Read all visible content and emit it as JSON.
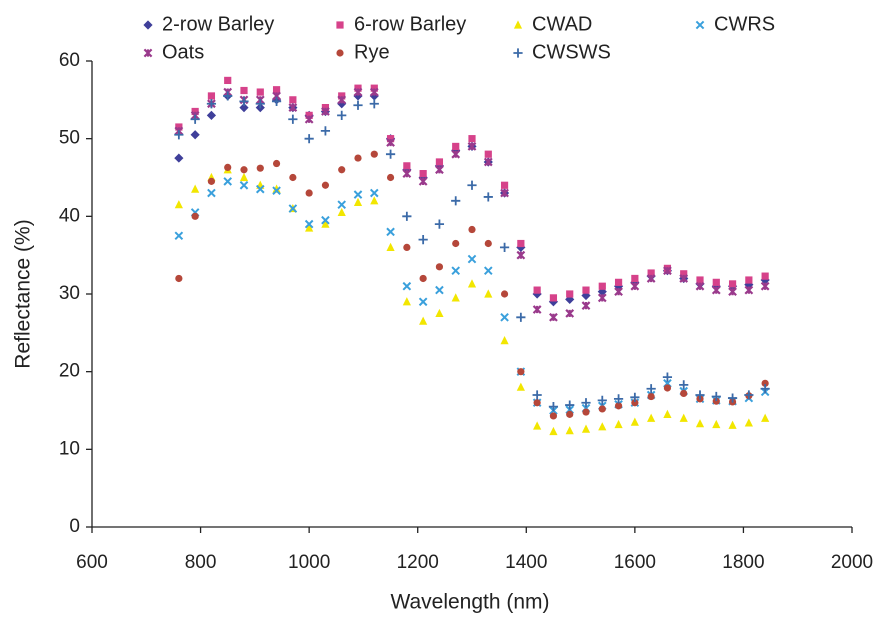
{
  "chart_data": {
    "type": "scatter",
    "x_label": "Wavelength (nm)",
    "y_label": "Reflectance (%)",
    "xlim": [
      600,
      2000
    ],
    "xticks": [
      600,
      800,
      1000,
      1200,
      1400,
      1600,
      1800,
      2000
    ],
    "ylim": [
      0,
      60
    ],
    "yticks": [
      0,
      10,
      20,
      30,
      40,
      50,
      60
    ],
    "grid": false,
    "legend": "top",
    "x": [
      760,
      790,
      820,
      850,
      880,
      910,
      940,
      970,
      1000,
      1030,
      1060,
      1090,
      1120,
      1150,
      1180,
      1210,
      1240,
      1270,
      1300,
      1330,
      1360,
      1390,
      1420,
      1450,
      1480,
      1510,
      1540,
      1570,
      1600,
      1630,
      1660,
      1690,
      1720,
      1750,
      1780,
      1810,
      1840
    ],
    "series": [
      {
        "name": "2-row Barley",
        "color": "#3f3f9a",
        "marker": "diamond",
        "values": [
          47.5,
          50.5,
          53,
          55.5,
          54,
          54,
          55,
          54,
          53,
          53.5,
          54.5,
          55.5,
          55.5,
          50,
          46,
          45,
          46.5,
          48.5,
          49,
          47,
          43,
          36,
          30,
          29,
          29.3,
          29.8,
          30.3,
          31,
          31.5,
          32.3,
          33,
          32,
          31.3,
          31,
          31,
          31.2,
          31.8
        ]
      },
      {
        "name": "6-row Barley",
        "color": "#d6428a",
        "marker": "square",
        "values": [
          51.5,
          53.5,
          55.5,
          57.5,
          56.2,
          56,
          56.3,
          55,
          53,
          54,
          55.5,
          56.5,
          56.5,
          50,
          46.5,
          45.5,
          47,
          49,
          50,
          48,
          44,
          36.5,
          30.5,
          29.5,
          30,
          30.5,
          31,
          31.5,
          32,
          32.7,
          33.3,
          32.6,
          31.8,
          31.5,
          31.3,
          31.8,
          32.3
        ]
      },
      {
        "name": "CWAD",
        "color": "#f2e600",
        "marker": "triangle",
        "values": [
          41.5,
          43.5,
          45,
          46,
          45,
          44,
          43.5,
          41,
          38.5,
          39,
          40.5,
          41.8,
          42,
          36,
          29,
          26.5,
          27.5,
          29.5,
          31.3,
          30,
          24,
          18,
          13,
          12.3,
          12.4,
          12.6,
          12.9,
          13.2,
          13.5,
          14,
          14.5,
          14,
          13.3,
          13.2,
          13.1,
          13.4,
          14
        ]
      },
      {
        "name": "CWRS",
        "color": "#3aa0dc",
        "marker": "x",
        "values": [
          37.5,
          40.5,
          43,
          44.5,
          44,
          43.5,
          43.3,
          41,
          39,
          39.5,
          41.5,
          42.8,
          43,
          38,
          31,
          29,
          30.5,
          33,
          34.5,
          33,
          27,
          20,
          16,
          15,
          15.1,
          15.3,
          15.6,
          15.8,
          16,
          17,
          18.5,
          17.5,
          16.5,
          16.3,
          16.2,
          16.6,
          17.4
        ]
      },
      {
        "name": "Oats",
        "color": "#9a3a8c",
        "marker": "star",
        "values": [
          51,
          53,
          54.5,
          56,
          55,
          55,
          55.5,
          54,
          52.5,
          53.5,
          55,
          56,
          56,
          49.5,
          45.5,
          44.5,
          46,
          48,
          49,
          47,
          43,
          35,
          28,
          27,
          27.5,
          28.5,
          29.5,
          30.3,
          31,
          32,
          33,
          32,
          31,
          30.5,
          30.3,
          30.5,
          31
        ]
      },
      {
        "name": "Rye",
        "color": "#b5473a",
        "marker": "circle",
        "values": [
          32,
          40,
          44.5,
          46.3,
          46,
          46.2,
          46.8,
          45,
          43,
          44,
          46,
          47.5,
          48,
          45,
          36,
          32,
          33.5,
          36.5,
          38.3,
          36.5,
          30,
          20,
          16,
          14.3,
          14.5,
          14.8,
          15.2,
          15.6,
          16,
          16.8,
          17.9,
          17.2,
          16.5,
          16.2,
          16.1,
          16.9,
          18.5
        ]
      },
      {
        "name": "CWSWS",
        "color": "#3b6aa8",
        "marker": "plus",
        "values": [
          50.5,
          52.5,
          54.5,
          55.5,
          54.8,
          54.5,
          54.8,
          52.5,
          50,
          51,
          53,
          54.3,
          54.5,
          48,
          40,
          37,
          39,
          42,
          44,
          42.5,
          36,
          27,
          17,
          15.5,
          15.7,
          16,
          16.3,
          16.5,
          16.7,
          17.8,
          19.3,
          18.3,
          17,
          16.8,
          16.6,
          17,
          17.8
        ]
      }
    ]
  }
}
